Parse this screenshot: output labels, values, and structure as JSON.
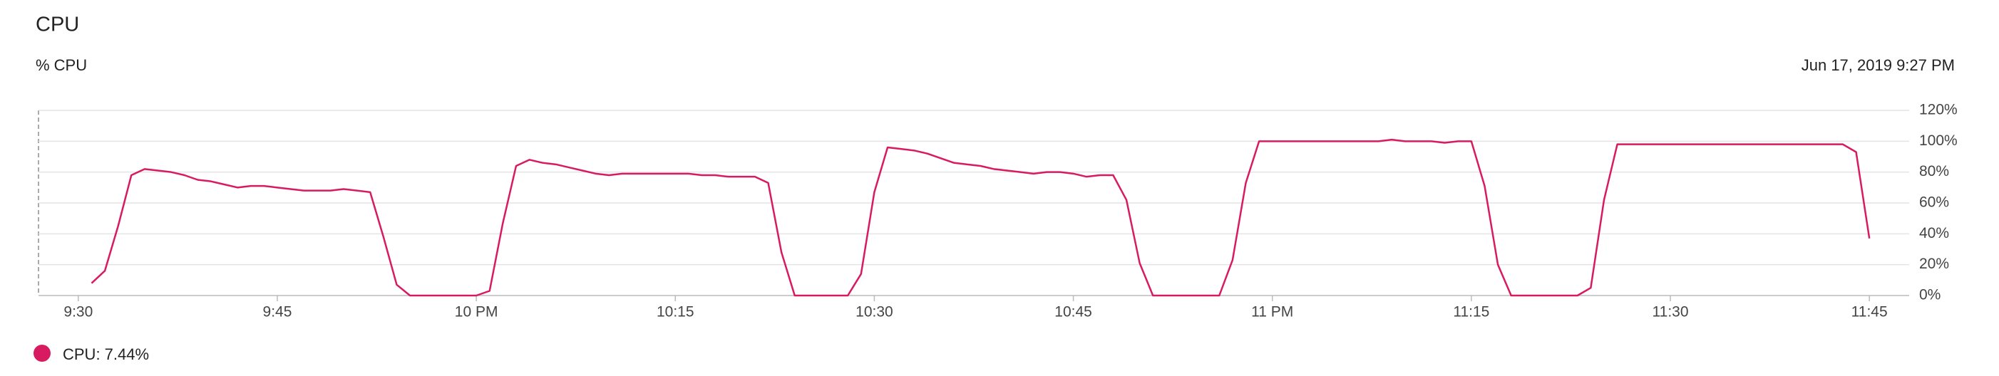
{
  "chart_data": {
    "type": "line",
    "title": "CPU",
    "subtitle": "% CPU",
    "timestamp": "Jun 17, 2019 9:27 PM",
    "x": [
      1291,
      1292,
      1293,
      1294,
      1295,
      1296,
      1297,
      1298,
      1299,
      1300,
      1301,
      1302,
      1303,
      1304,
      1305,
      1306,
      1307,
      1308,
      1309,
      1310,
      1311,
      1312,
      1313,
      1314,
      1315,
      1316,
      1317,
      1318,
      1319,
      1320,
      1321,
      1322,
      1323,
      1324,
      1325,
      1326,
      1327,
      1328,
      1329,
      1330,
      1331,
      1332,
      1333,
      1334,
      1335,
      1336,
      1337,
      1338,
      1339,
      1340,
      1341,
      1342,
      1343,
      1344,
      1345,
      1346,
      1347,
      1348,
      1349,
      1350,
      1351,
      1352,
      1353,
      1354,
      1355,
      1356,
      1357,
      1358,
      1359,
      1360,
      1361,
      1362,
      1363,
      1364,
      1365,
      1366,
      1367,
      1368,
      1369,
      1370,
      1371,
      1372,
      1373,
      1374,
      1375,
      1376,
      1377,
      1378,
      1379,
      1380,
      1381,
      1382,
      1383,
      1384,
      1385,
      1386,
      1387,
      1388,
      1389,
      1390,
      1391,
      1392,
      1393,
      1394,
      1395,
      1396,
      1397,
      1398,
      1399,
      1400,
      1401,
      1402,
      1403,
      1404,
      1405,
      1406,
      1407,
      1408,
      1409,
      1410,
      1411,
      1412,
      1413,
      1414,
      1415,
      1416,
      1417,
      1418,
      1419,
      1420,
      1421,
      1422,
      1423,
      1424,
      1425
    ],
    "series": [
      {
        "name": "CPU: 7.44%",
        "color": "#d81b60",
        "values": [
          8,
          16,
          45,
          78,
          82,
          81,
          80,
          78,
          75,
          74,
          72,
          70,
          71,
          71,
          70,
          69,
          68,
          68,
          68,
          69,
          68,
          67,
          38,
          7,
          0,
          0,
          0,
          0,
          0,
          0,
          3,
          47,
          84,
          88,
          86,
          85,
          83,
          81,
          79,
          78,
          79,
          79,
          79,
          79,
          79,
          79,
          78,
          78,
          77,
          77,
          77,
          73,
          28,
          0,
          0,
          0,
          0,
          0,
          14,
          67,
          96,
          95,
          94,
          92,
          89,
          86,
          85,
          84,
          82,
          81,
          80,
          79,
          80,
          80,
          79,
          77,
          78,
          78,
          62,
          21,
          0,
          0,
          0,
          0,
          0,
          0,
          23,
          73,
          100,
          100,
          100,
          100,
          100,
          100,
          100,
          100,
          100,
          100,
          101,
          100,
          100,
          100,
          99,
          100,
          100,
          71,
          20,
          0,
          0,
          0,
          0,
          0,
          0,
          5,
          62,
          98,
          98,
          98,
          98,
          98,
          98,
          98,
          98,
          98,
          98,
          98,
          98,
          98,
          98,
          98,
          98,
          98,
          98,
          93,
          37
        ]
      }
    ],
    "xlim": [
      1287,
      1428
    ],
    "xticks": [
      {
        "value": 1290,
        "label": "9:30"
      },
      {
        "value": 1305,
        "label": "9:45"
      },
      {
        "value": 1320,
        "label": "10 PM"
      },
      {
        "value": 1335,
        "label": "10:15"
      },
      {
        "value": 1350,
        "label": "10:30"
      },
      {
        "value": 1365,
        "label": "10:45"
      },
      {
        "value": 1380,
        "label": "11 PM"
      },
      {
        "value": 1395,
        "label": "11:15"
      },
      {
        "value": 1410,
        "label": "11:30"
      },
      {
        "value": 1425,
        "label": "11:45"
      }
    ],
    "ylim": [
      0,
      120
    ],
    "yticks": [
      {
        "value": 0,
        "label": "0%"
      },
      {
        "value": 20,
        "label": "20%"
      },
      {
        "value": 40,
        "label": "40%"
      },
      {
        "value": 60,
        "label": "60%"
      },
      {
        "value": 80,
        "label": "80%"
      },
      {
        "value": 100,
        "label": "100%"
      },
      {
        "value": 120,
        "label": "120%"
      }
    ],
    "grid": true
  }
}
